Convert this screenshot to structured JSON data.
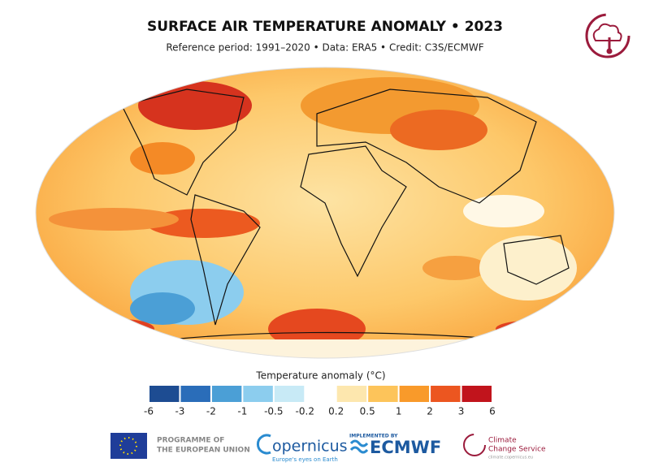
{
  "header": {
    "title": "SURFACE AIR TEMPERATURE ANOMALY • 2023",
    "subtitle": "Reference period: 1991–2020 • Data: ERA5 • Credit: C3S/ECMWF"
  },
  "legend": {
    "title": "Temperature anomaly (°C)",
    "ticks": [
      -6,
      -3,
      -2,
      -1,
      -0.5,
      -0.2,
      0.2,
      0.5,
      1,
      2,
      3,
      6
    ],
    "colors": [
      "#1d4c92",
      "#2a6db9",
      "#4b9fd6",
      "#8ccdee",
      "#c8eaf6",
      "#ffffff",
      "#fde7ae",
      "#fdc45a",
      "#f99a2a",
      "#ec5620",
      "#c1141c"
    ]
  },
  "footer": {
    "eu": [
      "PROGRAMME OF",
      "THE EUROPEAN UNION"
    ],
    "copernicus": "opernicus",
    "copernicus_tagline": "Europe's eyes on Earth",
    "implemented": "IMPLEMENTED BY",
    "ecmwf": "ECMWF",
    "c3s": [
      "Climate",
      "Change Service"
    ],
    "c3s_url": "climate.copernicus.eu"
  }
}
